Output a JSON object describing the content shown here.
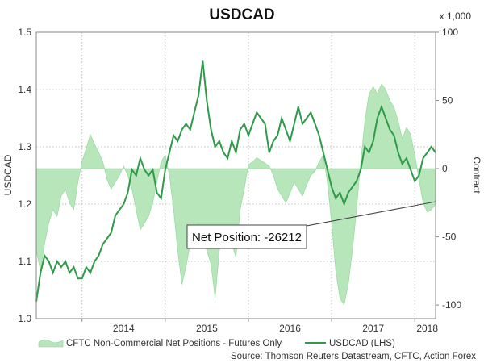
{
  "chart_data": {
    "type": "line",
    "title": "USDCAD",
    "ylabel_left": "USDCAD",
    "ylabel_right": "Contract",
    "right_unit": "x 1,000",
    "ylim_left": [
      1.0,
      1.5
    ],
    "ylim_right": [
      -110,
      100
    ],
    "yticks_left": [
      "1.0",
      "1.1",
      "1.2",
      "1.3",
      "1.4",
      "1.5"
    ],
    "yticks_right": [
      "-100",
      "-50",
      "0",
      "50",
      "100"
    ],
    "xticks": [
      "2014",
      "2015",
      "2016",
      "2017",
      "2018"
    ],
    "grid": true,
    "legend_position": "bottom",
    "annotation": "Net Position: -26212",
    "source": "Source: Thomson Reuters Datastream, CFTC, Action Forex",
    "colors": {
      "area": "#b6e6b9",
      "line": "#2e9a4a"
    },
    "series": [
      {
        "name": "CFTC Non-Commercial Net Positions - Futures Only",
        "type": "area",
        "axis": "right",
        "x": [
          2013.45,
          2013.5,
          2013.55,
          2013.6,
          2013.65,
          2013.7,
          2013.75,
          2013.8,
          2013.85,
          2013.9,
          2013.95,
          2014.0,
          2014.05,
          2014.1,
          2014.15,
          2014.2,
          2014.25,
          2014.3,
          2014.35,
          2014.4,
          2014.45,
          2014.5,
          2014.55,
          2014.6,
          2014.65,
          2014.7,
          2014.75,
          2014.8,
          2014.85,
          2014.9,
          2014.95,
          2015.0,
          2015.05,
          2015.1,
          2015.15,
          2015.2,
          2015.25,
          2015.3,
          2015.35,
          2015.4,
          2015.45,
          2015.5,
          2015.55,
          2015.6,
          2015.65,
          2015.7,
          2015.75,
          2015.8,
          2015.85,
          2015.9,
          2015.95,
          2016.0,
          2016.05,
          2016.1,
          2016.15,
          2016.2,
          2016.25,
          2016.3,
          2016.35,
          2016.4,
          2016.45,
          2016.5,
          2016.55,
          2016.6,
          2016.65,
          2016.7,
          2016.75,
          2016.8,
          2016.85,
          2016.9,
          2016.95,
          2017.0,
          2017.05,
          2017.1,
          2017.15,
          2017.2,
          2017.25,
          2017.3,
          2017.35,
          2017.4,
          2017.45,
          2017.5,
          2017.55,
          2017.6,
          2017.65,
          2017.7,
          2017.75,
          2017.8,
          2017.85,
          2017.9,
          2017.95,
          2018.0,
          2018.05,
          2018.1,
          2018.15,
          2018.2,
          2018.25
        ],
        "values": [
          -60,
          -75,
          -55,
          -40,
          -30,
          -35,
          -20,
          -15,
          -25,
          -30,
          -10,
          5,
          15,
          25,
          18,
          12,
          5,
          -8,
          -15,
          -10,
          -5,
          2,
          -5,
          -15,
          -30,
          -45,
          -40,
          -35,
          -25,
          -10,
          5,
          10,
          -5,
          -30,
          -60,
          -85,
          -72,
          -55,
          -45,
          -40,
          -50,
          -60,
          -70,
          -95,
          -60,
          -50,
          -45,
          -55,
          -65,
          -30,
          -15,
          3,
          5,
          8,
          6,
          4,
          2,
          -5,
          -15,
          -20,
          -25,
          -18,
          -10,
          -15,
          -20,
          -12,
          -5,
          -2,
          5,
          10,
          -10,
          -40,
          -75,
          -95,
          -100,
          -85,
          -60,
          -30,
          5,
          35,
          55,
          60,
          55,
          62,
          58,
          50,
          45,
          35,
          22,
          30,
          25,
          10,
          -8,
          -25,
          -32,
          -30,
          -26
        ]
      },
      {
        "name": "USDCAD (LHS)",
        "type": "line",
        "axis": "left",
        "x": [
          2013.45,
          2013.5,
          2013.55,
          2013.6,
          2013.65,
          2013.7,
          2013.75,
          2013.8,
          2013.85,
          2013.9,
          2013.95,
          2014.0,
          2014.05,
          2014.1,
          2014.15,
          2014.2,
          2014.25,
          2014.3,
          2014.35,
          2014.4,
          2014.45,
          2014.5,
          2014.55,
          2014.6,
          2014.65,
          2014.7,
          2014.75,
          2014.8,
          2014.85,
          2014.9,
          2014.95,
          2015.0,
          2015.05,
          2015.1,
          2015.15,
          2015.2,
          2015.25,
          2015.3,
          2015.35,
          2015.4,
          2015.45,
          2015.5,
          2015.55,
          2015.6,
          2015.65,
          2015.7,
          2015.75,
          2015.8,
          2015.85,
          2015.9,
          2015.95,
          2016.0,
          2016.05,
          2016.1,
          2016.15,
          2016.2,
          2016.25,
          2016.3,
          2016.35,
          2016.4,
          2016.45,
          2016.5,
          2016.55,
          2016.6,
          2016.65,
          2016.7,
          2016.75,
          2016.8,
          2016.85,
          2016.9,
          2016.95,
          2017.0,
          2017.05,
          2017.1,
          2017.15,
          2017.2,
          2017.25,
          2017.3,
          2017.35,
          2017.4,
          2017.45,
          2017.5,
          2017.55,
          2017.6,
          2017.65,
          2017.7,
          2017.75,
          2017.8,
          2017.85,
          2017.9,
          2017.95,
          2018.0,
          2018.05,
          2018.1,
          2018.15,
          2018.2,
          2018.25
        ],
        "values": [
          1.03,
          1.08,
          1.11,
          1.1,
          1.08,
          1.1,
          1.09,
          1.1,
          1.08,
          1.09,
          1.07,
          1.07,
          1.09,
          1.08,
          1.1,
          1.11,
          1.13,
          1.14,
          1.15,
          1.18,
          1.19,
          1.2,
          1.22,
          1.26,
          1.25,
          1.28,
          1.26,
          1.25,
          1.26,
          1.22,
          1.21,
          1.26,
          1.29,
          1.32,
          1.31,
          1.33,
          1.34,
          1.33,
          1.36,
          1.39,
          1.45,
          1.38,
          1.33,
          1.3,
          1.31,
          1.29,
          1.28,
          1.31,
          1.29,
          1.33,
          1.34,
          1.32,
          1.34,
          1.36,
          1.35,
          1.34,
          1.29,
          1.31,
          1.32,
          1.35,
          1.33,
          1.31,
          1.34,
          1.37,
          1.34,
          1.35,
          1.36,
          1.34,
          1.32,
          1.29,
          1.26,
          1.23,
          1.21,
          1.22,
          1.2,
          1.22,
          1.23,
          1.24,
          1.26,
          1.3,
          1.29,
          1.31,
          1.35,
          1.37,
          1.35,
          1.33,
          1.32,
          1.29,
          1.27,
          1.28,
          1.26,
          1.24,
          1.25,
          1.28,
          1.29,
          1.3,
          1.29
        ]
      }
    ]
  }
}
